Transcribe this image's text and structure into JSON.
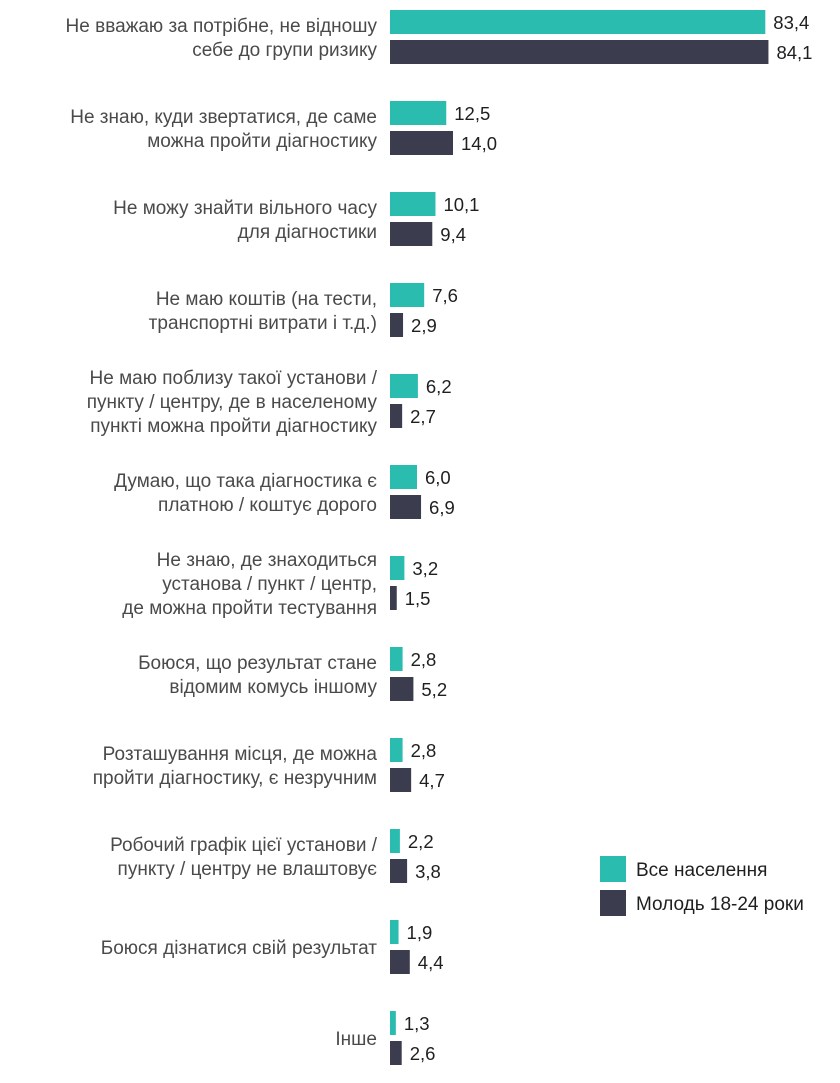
{
  "chart_data": {
    "type": "bar",
    "orientation": "horizontal",
    "decimal_separator": ",",
    "categories": [
      [
        "Не вважаю за потрібне, не відношу",
        "себе до групи ризику"
      ],
      [
        "Не знаю, куди звертатися, де саме",
        "можна пройти діагностику"
      ],
      [
        "Не можу знайти вільного часу",
        "для діагностики"
      ],
      [
        "Не маю коштів (на тести,",
        "транспортні витрати і т.д.)"
      ],
      [
        "Не маю поблизу такої установи /",
        "пункту / центру, де в населеному",
        "пункті можна пройти діагностику"
      ],
      [
        "Думаю, що така діагностика є",
        "платною / коштує дорого"
      ],
      [
        "Не знаю, де знаходиться",
        "установа / пункт / центр,",
        "де можна пройти тестування"
      ],
      [
        "Боюся, що результат стане",
        "відомим комусь іншому"
      ],
      [
        "Розташування місця, де можна",
        "пройти діагностику, є незручним"
      ],
      [
        "Робочий графік цієї установи /",
        "пункту / центру не влаштовує"
      ],
      [
        "Боюся дізнатися свій результат"
      ],
      [
        "Інше"
      ]
    ],
    "series": [
      {
        "name": "Все населення",
        "color": "#2bbcb0",
        "values": [
          83.4,
          12.5,
          10.1,
          7.6,
          6.2,
          6.0,
          3.2,
          2.8,
          2.8,
          2.2,
          1.9,
          1.3
        ]
      },
      {
        "name": "Молодь 18-24 роки",
        "color": "#3b3d4f",
        "values": [
          84.1,
          14.0,
          9.4,
          2.9,
          2.7,
          6.9,
          1.5,
          5.2,
          4.7,
          3.8,
          4.4,
          2.6
        ]
      }
    ],
    "xlim": [
      0,
      100
    ],
    "legend_position": "right"
  }
}
